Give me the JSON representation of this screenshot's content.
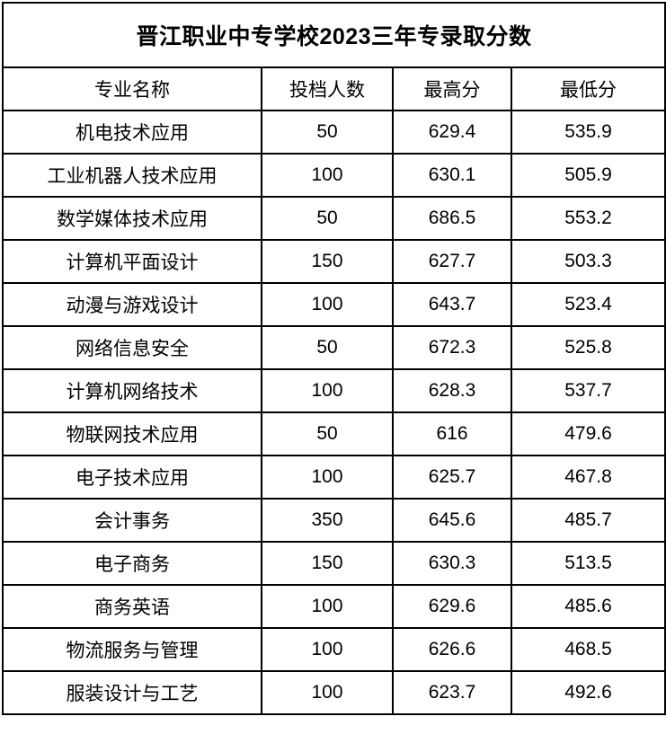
{
  "table": {
    "title": "晋江职业中专学校2023三年专录取分数",
    "columns": [
      "专业名称",
      "投档人数",
      "最高分",
      "最低分"
    ],
    "rows": [
      [
        "机电技术应用",
        "50",
        "629.4",
        "535.9"
      ],
      [
        "工业机器人技术应用",
        "100",
        "630.1",
        "505.9"
      ],
      [
        "数学媒体技术应用",
        "50",
        "686.5",
        "553.2"
      ],
      [
        "计算机平面设计",
        "150",
        "627.7",
        "503.3"
      ],
      [
        "动漫与游戏设计",
        "100",
        "643.7",
        "523.4"
      ],
      [
        "网络信息安全",
        "50",
        "672.3",
        "525.8"
      ],
      [
        "计算机网络技术",
        "100",
        "628.3",
        "537.7"
      ],
      [
        "物联网技术应用",
        "50",
        "616",
        "479.6"
      ],
      [
        "电子技术应用",
        "100",
        "625.7",
        "467.8"
      ],
      [
        "会计事务",
        "350",
        "645.6",
        "485.7"
      ],
      [
        "电子商务",
        "150",
        "630.3",
        "513.5"
      ],
      [
        "商务英语",
        "100",
        "629.6",
        "485.6"
      ],
      [
        "物流服务与管理",
        "100",
        "626.6",
        "468.5"
      ],
      [
        "服装设计与工艺",
        "100",
        "623.7",
        "492.6"
      ]
    ],
    "colors": {
      "border": "#000000",
      "text": "#000000",
      "background": "#ffffff"
    }
  }
}
